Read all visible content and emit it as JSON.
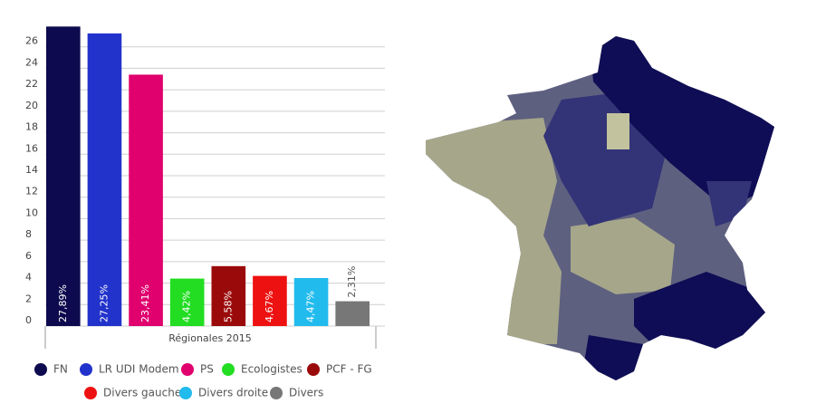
{
  "chart_data": {
    "type": "bar",
    "categories": [
      "FN",
      "LR UDI Modem",
      "PS",
      "Ecologistes",
      "PCF - FG",
      "Divers gauche",
      "Divers droite",
      "Divers"
    ],
    "values": [
      27.89,
      27.25,
      23.41,
      4.42,
      5.58,
      4.67,
      4.47,
      2.31
    ],
    "value_labels": [
      "27,89%",
      "27,25%",
      "23,41%",
      "4,42%",
      "5,58%",
      "4,67%",
      "4,47%",
      "2,31%"
    ],
    "colors": [
      "#0d0a4f",
      "#2233cc",
      "#e0006e",
      "#22dd22",
      "#9b0a0a",
      "#ee1111",
      "#22bbee",
      "#777777"
    ],
    "x_label": "Régionales 2015",
    "ylim": [
      0,
      28
    ],
    "yticks": [
      0,
      2,
      4,
      6,
      8,
      10,
      12,
      14,
      16,
      18,
      20,
      22,
      24,
      26
    ],
    "grid": true
  }
}
